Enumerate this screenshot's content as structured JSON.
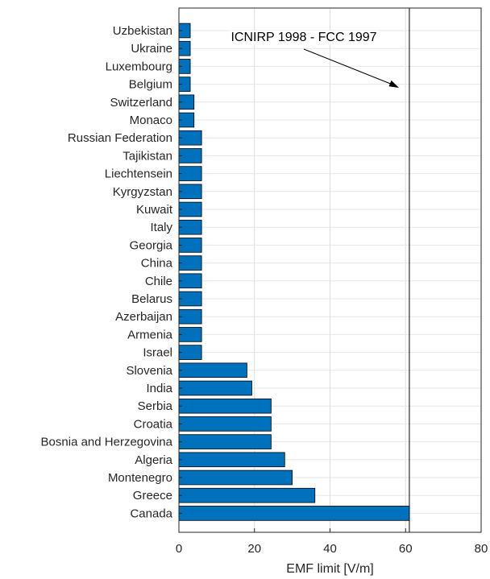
{
  "chart_data": {
    "type": "bar",
    "orientation": "horizontal",
    "categories": [
      "Uzbekistan",
      "Ukraine",
      "Luxembourg",
      "Belgium",
      "Switzerland",
      "Monaco",
      "Russian Federation",
      "Tajikistan",
      "Liechtensein",
      "Kyrgyzstan",
      "Kuwait",
      "Italy",
      "Georgia",
      "China",
      "Chile",
      "Belarus",
      "Azerbaijan",
      "Armenia",
      "Israel",
      "Slovenia",
      "India",
      "Serbia",
      "Croatia",
      "Bosnia and Herzegovina",
      "Algeria",
      "Montenegro",
      "Greece",
      "Canada"
    ],
    "values": [
      3,
      3,
      3,
      3,
      4,
      4,
      6,
      6,
      6,
      6,
      6,
      6,
      6,
      6,
      6,
      6,
      6,
      6,
      6,
      18,
      19.3,
      24.4,
      24.4,
      24.4,
      28,
      30,
      36,
      61
    ],
    "xlabel": "EMF limit [V/m]",
    "ylabel": "",
    "xlim": [
      0,
      80
    ],
    "xticks": [
      "0",
      "20",
      "40",
      "60",
      "80"
    ],
    "grid": true,
    "bar_color": "#0072bd",
    "reference_line": {
      "value": 61,
      "label": "ICNIRP 1998 - FCC 1997"
    }
  }
}
